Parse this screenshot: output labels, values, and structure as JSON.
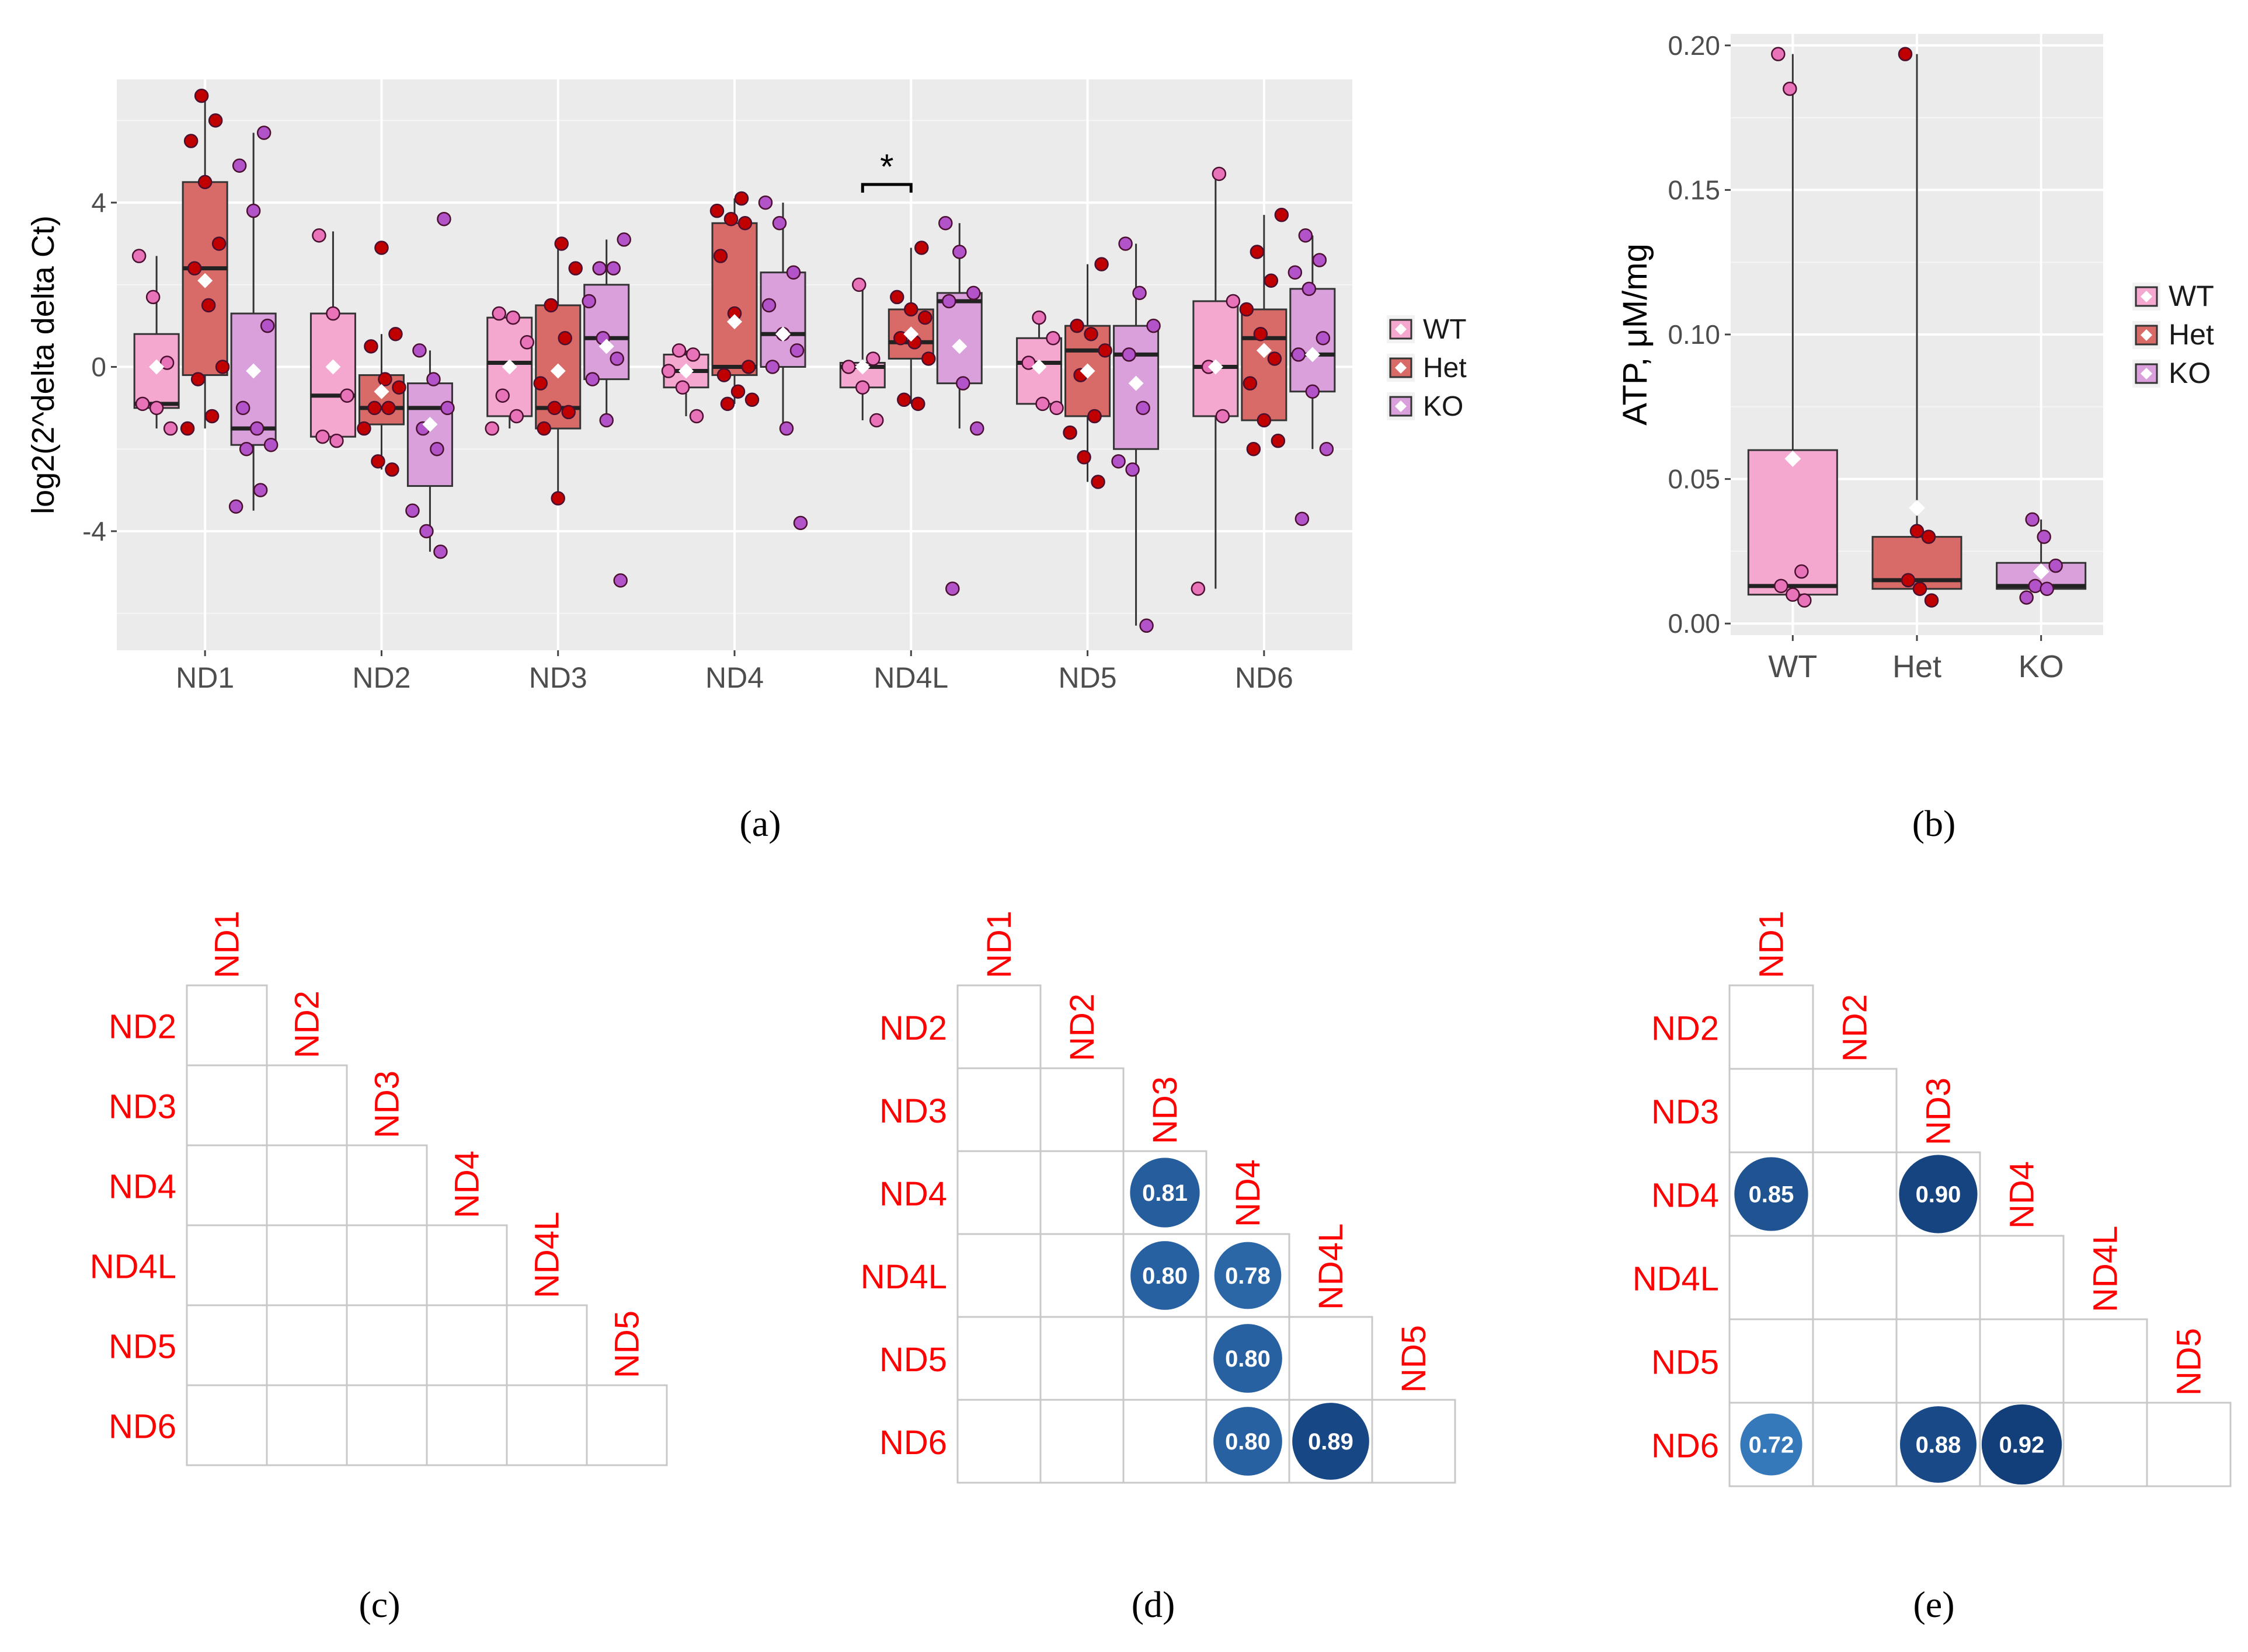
{
  "colors": {
    "WT": "#f4a7cf",
    "Het": "#d86b68",
    "KO": "#d9a0dc",
    "WT_point": "#e873b8",
    "Het_point": "#c00000",
    "KO_point": "#b353c9",
    "panel_bg": "#ebebeb",
    "grid": "#ffffff",
    "corr_label": "#ff0000",
    "corr_fill_low": "#3a7fc1",
    "corr_fill_high": "#123e7a"
  },
  "chart_data": [
    {
      "id": "a",
      "type": "box",
      "caption": "(a)",
      "ylabel": "log2(2^delta delta Ct)",
      "ylim": [
        -6.9,
        7.0
      ],
      "yticks": [
        -4,
        0,
        4
      ],
      "categories": [
        "ND1",
        "ND2",
        "ND3",
        "ND4",
        "ND4L",
        "ND5",
        "ND6"
      ],
      "legend": [
        "WT",
        "Het",
        "KO"
      ],
      "significance": {
        "category": "ND4L",
        "from": "WT",
        "to": "Het",
        "label": "*"
      },
      "groups": [
        {
          "gene": "ND1",
          "series": "WT",
          "min": -1.5,
          "q1": -1.0,
          "median": -0.9,
          "q3": 0.8,
          "max": 2.7,
          "mean": 0.0,
          "points": [
            2.7,
            1.7,
            0.1,
            -0.9,
            -1.0,
            -1.5
          ]
        },
        {
          "gene": "ND1",
          "series": "Het",
          "min": -1.5,
          "q1": -0.2,
          "median": 2.4,
          "q3": 4.5,
          "max": 6.6,
          "mean": 2.1,
          "points": [
            6.6,
            6.0,
            5.5,
            4.5,
            3.0,
            2.4,
            1.5,
            0.0,
            -0.3,
            -1.2,
            -1.5
          ]
        },
        {
          "gene": "ND1",
          "series": "KO",
          "min": -3.5,
          "q1": -1.9,
          "median": -1.5,
          "q3": 1.3,
          "max": 5.7,
          "mean": -0.1,
          "points": [
            5.7,
            4.9,
            3.8,
            1.0,
            -1.0,
            -1.5,
            -1.9,
            -2.0,
            -3.0,
            -3.4
          ]
        },
        {
          "gene": "ND2",
          "series": "WT",
          "min": -1.8,
          "q1": -1.7,
          "median": -0.7,
          "q3": 1.3,
          "max": 3.3,
          "mean": 0.0,
          "points": [
            3.2,
            1.3,
            -0.7,
            -1.7,
            -1.8
          ]
        },
        {
          "gene": "ND2",
          "series": "Het",
          "min": -2.5,
          "q1": -1.4,
          "median": -1.0,
          "q3": -0.2,
          "max": 0.8,
          "mean": -0.6,
          "points": [
            2.9,
            0.8,
            0.5,
            -0.3,
            -0.5,
            -1.0,
            -1.0,
            -1.5,
            -2.3,
            -2.5
          ]
        },
        {
          "gene": "ND2",
          "series": "KO",
          "min": -4.5,
          "q1": -2.9,
          "median": -1.0,
          "q3": -0.4,
          "max": 0.4,
          "mean": -1.4,
          "points": [
            3.6,
            0.4,
            -0.3,
            -1.0,
            -1.5,
            -2.0,
            -3.5,
            -4.0,
            -4.5
          ]
        },
        {
          "gene": "ND3",
          "series": "WT",
          "min": -1.5,
          "q1": -1.2,
          "median": 0.1,
          "q3": 1.2,
          "max": 1.3,
          "mean": 0.0,
          "points": [
            1.3,
            1.2,
            0.6,
            -0.7,
            -1.2,
            -1.5
          ]
        },
        {
          "gene": "ND3",
          "series": "Het",
          "min": -3.1,
          "q1": -1.5,
          "median": -1.0,
          "q3": 1.5,
          "max": 3.0,
          "mean": -0.1,
          "points": [
            3.0,
            2.4,
            1.5,
            0.7,
            -0.4,
            -1.0,
            -1.1,
            -1.5,
            -3.2
          ]
        },
        {
          "gene": "ND3",
          "series": "KO",
          "min": -1.3,
          "q1": -0.3,
          "median": 0.7,
          "q3": 2.0,
          "max": 3.1,
          "mean": 0.5,
          "points": [
            3.1,
            2.4,
            2.4,
            1.6,
            0.7,
            0.2,
            -0.3,
            -1.3,
            -5.2
          ]
        },
        {
          "gene": "ND4",
          "series": "WT",
          "min": -1.2,
          "q1": -0.5,
          "median": -0.1,
          "q3": 0.3,
          "max": 0.4,
          "mean": -0.1,
          "points": [
            0.4,
            0.3,
            -0.1,
            -0.5,
            -1.2
          ]
        },
        {
          "gene": "ND4",
          "series": "Het",
          "min": -0.9,
          "q1": -0.2,
          "median": 0.0,
          "q3": 3.5,
          "max": 4.1,
          "mean": 1.1,
          "points": [
            4.1,
            3.8,
            3.6,
            3.5,
            2.7,
            1.3,
            0.0,
            -0.2,
            -0.6,
            -0.8,
            -0.9
          ]
        },
        {
          "gene": "ND4",
          "series": "KO",
          "min": -1.5,
          "q1": 0.0,
          "median": 0.8,
          "q3": 2.3,
          "max": 4.0,
          "mean": 0.8,
          "points": [
            4.0,
            3.5,
            2.3,
            1.5,
            0.8,
            0.4,
            0.0,
            -1.5,
            -3.8
          ]
        },
        {
          "gene": "ND4L",
          "series": "WT",
          "min": -1.3,
          "q1": -0.5,
          "median": 0.0,
          "q3": 0.1,
          "max": 2.0,
          "mean": 0.0,
          "points": [
            2.0,
            0.2,
            0.0,
            -0.5,
            -1.3
          ]
        },
        {
          "gene": "ND4L",
          "series": "Het",
          "min": -0.9,
          "q1": 0.2,
          "median": 0.6,
          "q3": 1.4,
          "max": 2.9,
          "mean": 0.8,
          "points": [
            2.9,
            1.7,
            1.4,
            1.2,
            0.7,
            0.6,
            0.2,
            -0.8,
            -0.9
          ]
        },
        {
          "gene": "ND4L",
          "series": "KO",
          "min": -1.5,
          "q1": -0.4,
          "median": 1.6,
          "q3": 1.8,
          "max": 3.5,
          "mean": 0.5,
          "points": [
            3.5,
            2.8,
            1.8,
            1.6,
            -0.4,
            -1.5,
            -5.4
          ]
        },
        {
          "gene": "ND5",
          "series": "WT",
          "min": -1.0,
          "q1": -0.9,
          "median": 0.1,
          "q3": 0.7,
          "max": 1.2,
          "mean": 0.0,
          "points": [
            1.2,
            0.7,
            0.1,
            -0.9,
            -1.0
          ]
        },
        {
          "gene": "ND5",
          "series": "Het",
          "min": -2.8,
          "q1": -1.2,
          "median": 0.4,
          "q3": 1.0,
          "max": 2.5,
          "mean": -0.1,
          "points": [
            2.5,
            1.0,
            0.8,
            0.4,
            -0.2,
            -1.2,
            -1.6,
            -2.2,
            -2.8
          ]
        },
        {
          "gene": "ND5",
          "series": "KO",
          "min": -6.3,
          "q1": -2.0,
          "median": 0.3,
          "q3": 1.0,
          "max": 3.0,
          "mean": -0.4,
          "points": [
            3.0,
            1.8,
            1.0,
            0.3,
            -1.0,
            -2.3,
            -2.5,
            -6.3
          ]
        },
        {
          "gene": "ND6",
          "series": "WT",
          "min": -5.4,
          "q1": -1.2,
          "median": 0.0,
          "q3": 1.6,
          "max": 4.7,
          "mean": 0.0,
          "points": [
            4.7,
            1.6,
            0.0,
            -1.2,
            -5.4
          ]
        },
        {
          "gene": "ND6",
          "series": "Het",
          "min": -1.3,
          "q1": -1.3,
          "median": 0.7,
          "q3": 1.4,
          "max": 3.7,
          "mean": 0.4,
          "points": [
            3.7,
            2.8,
            2.1,
            1.4,
            0.8,
            0.2,
            -0.4,
            -1.3,
            -1.8,
            -2.0
          ]
        },
        {
          "gene": "ND6",
          "series": "KO",
          "min": -2.0,
          "q1": -0.6,
          "median": 0.3,
          "q3": 1.9,
          "max": 3.2,
          "mean": 0.3,
          "points": [
            3.2,
            2.6,
            2.3,
            1.9,
            0.7,
            0.3,
            -0.6,
            -2.0,
            -3.7
          ]
        }
      ]
    },
    {
      "id": "b",
      "type": "box",
      "caption": "(b)",
      "ylabel": "ATP, μM/mg",
      "ylim": [
        -0.004,
        0.204
      ],
      "yticks": [
        0.0,
        0.05,
        0.1,
        0.15,
        0.2
      ],
      "ytick_labels": [
        "0.00",
        "0.05",
        "0.10",
        "0.15",
        "0.20"
      ],
      "categories": [
        "WT",
        "Het",
        "KO"
      ],
      "legend": [
        "WT",
        "Het",
        "KO"
      ],
      "groups": [
        {
          "series": "WT",
          "min": 0.009,
          "q1": 0.01,
          "median": 0.013,
          "q3": 0.06,
          "max": 0.197,
          "mean": 0.057,
          "points": [
            0.197,
            0.185,
            0.018,
            0.013,
            0.01,
            0.008
          ]
        },
        {
          "series": "Het",
          "min": 0.012,
          "q1": 0.012,
          "median": 0.015,
          "q3": 0.03,
          "max": 0.197,
          "mean": 0.04,
          "points": [
            0.197,
            0.032,
            0.03,
            0.015,
            0.012,
            0.008
          ]
        },
        {
          "series": "KO",
          "min": 0.012,
          "q1": 0.012,
          "median": 0.013,
          "q3": 0.021,
          "max": 0.036,
          "mean": 0.018,
          "points": [
            0.036,
            0.03,
            0.02,
            0.013,
            0.012,
            0.009
          ]
        }
      ]
    },
    {
      "id": "c",
      "type": "heatmap",
      "caption": "(c)",
      "labels": [
        "ND1",
        "ND2",
        "ND3",
        "ND4",
        "ND4L",
        "ND5",
        "ND6"
      ],
      "cells": []
    },
    {
      "id": "d",
      "type": "heatmap",
      "caption": "(d)",
      "labels": [
        "ND1",
        "ND2",
        "ND3",
        "ND4",
        "ND4L",
        "ND5",
        "ND6"
      ],
      "cells": [
        {
          "row": "ND4",
          "col": "ND3",
          "value": 0.81,
          "label": "0.81"
        },
        {
          "row": "ND4L",
          "col": "ND3",
          "value": 0.8,
          "label": "0.80"
        },
        {
          "row": "ND4L",
          "col": "ND4",
          "value": 0.78,
          "label": "0.78"
        },
        {
          "row": "ND5",
          "col": "ND4",
          "value": 0.8,
          "label": "0.80"
        },
        {
          "row": "ND6",
          "col": "ND4",
          "value": 0.8,
          "label": "0.80"
        },
        {
          "row": "ND6",
          "col": "ND4L",
          "value": 0.89,
          "label": "0.89"
        }
      ]
    },
    {
      "id": "e",
      "type": "heatmap",
      "caption": "(e)",
      "labels": [
        "ND1",
        "ND2",
        "ND3",
        "ND4",
        "ND4L",
        "ND5",
        "ND6"
      ],
      "cells": [
        {
          "row": "ND4",
          "col": "ND1",
          "value": 0.85,
          "label": "0.85"
        },
        {
          "row": "ND4",
          "col": "ND3",
          "value": 0.9,
          "label": "0.90"
        },
        {
          "row": "ND6",
          "col": "ND1",
          "value": 0.72,
          "label": "0.72"
        },
        {
          "row": "ND6",
          "col": "ND3",
          "value": 0.88,
          "label": "0.88"
        },
        {
          "row": "ND6",
          "col": "ND4",
          "value": 0.92,
          "label": "0.92"
        }
      ]
    }
  ]
}
